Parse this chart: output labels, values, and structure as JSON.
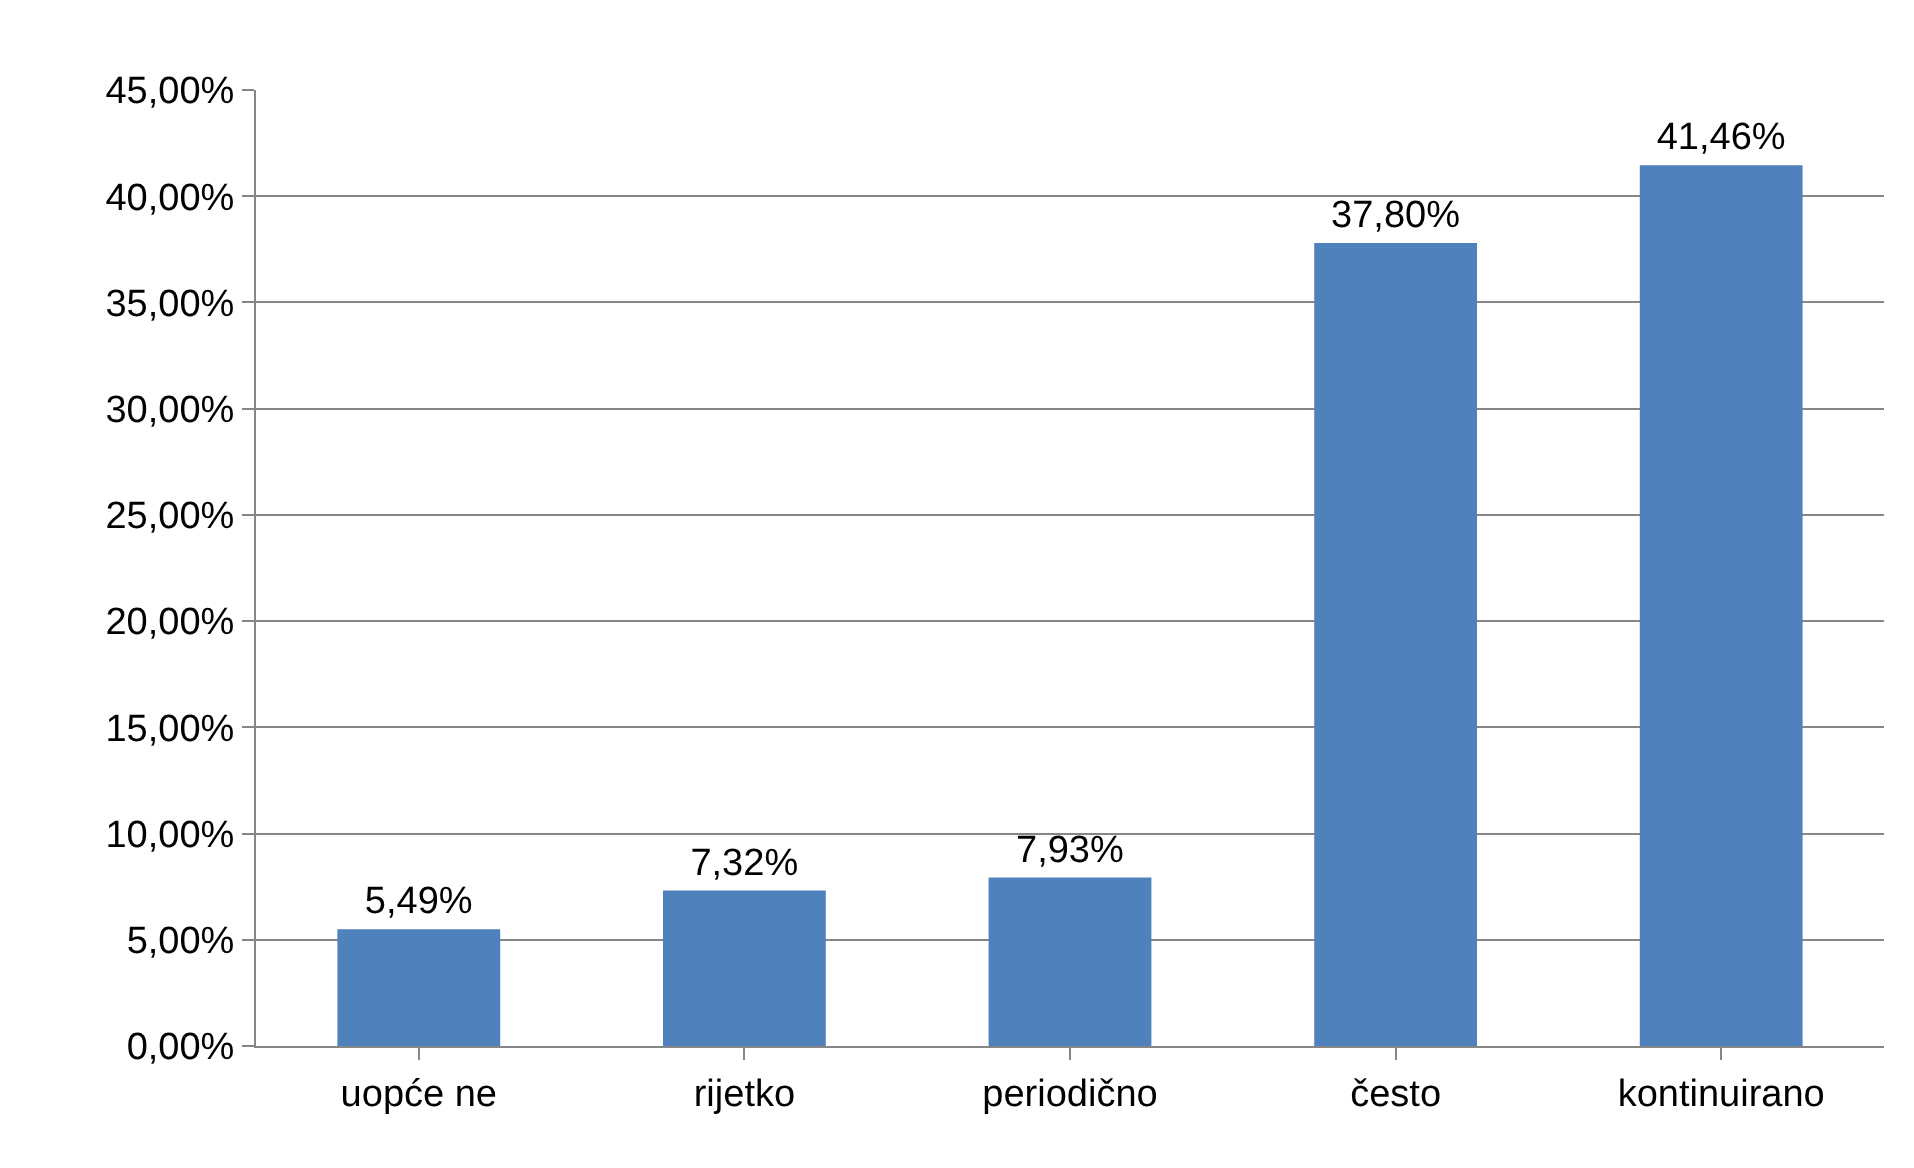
{
  "chart_data": {
    "type": "bar",
    "categories": [
      "uopće ne",
      "rijetko",
      "periodično",
      "često",
      "kontinuirano"
    ],
    "values": [
      5.49,
      7.32,
      7.93,
      37.8,
      41.46
    ],
    "value_labels": [
      "5,49%",
      "7,32%",
      "7,93%",
      "37,80%",
      "41,46%"
    ],
    "color": "#4f81bd",
    "ylim": [
      0,
      45
    ],
    "yticks": [
      {
        "value": 0,
        "label": "0,00%"
      },
      {
        "value": 5,
        "label": "5,00%"
      },
      {
        "value": 10,
        "label": "10,00%"
      },
      {
        "value": 15,
        "label": "15,00%"
      },
      {
        "value": 20,
        "label": "20,00%"
      },
      {
        "value": 25,
        "label": "25,00%"
      },
      {
        "value": 30,
        "label": "30,00%"
      },
      {
        "value": 35,
        "label": "35,00%"
      },
      {
        "value": 40,
        "label": "40,00%"
      },
      {
        "value": 45,
        "label": "45,00%"
      }
    ],
    "grid": "y",
    "legend": false
  }
}
